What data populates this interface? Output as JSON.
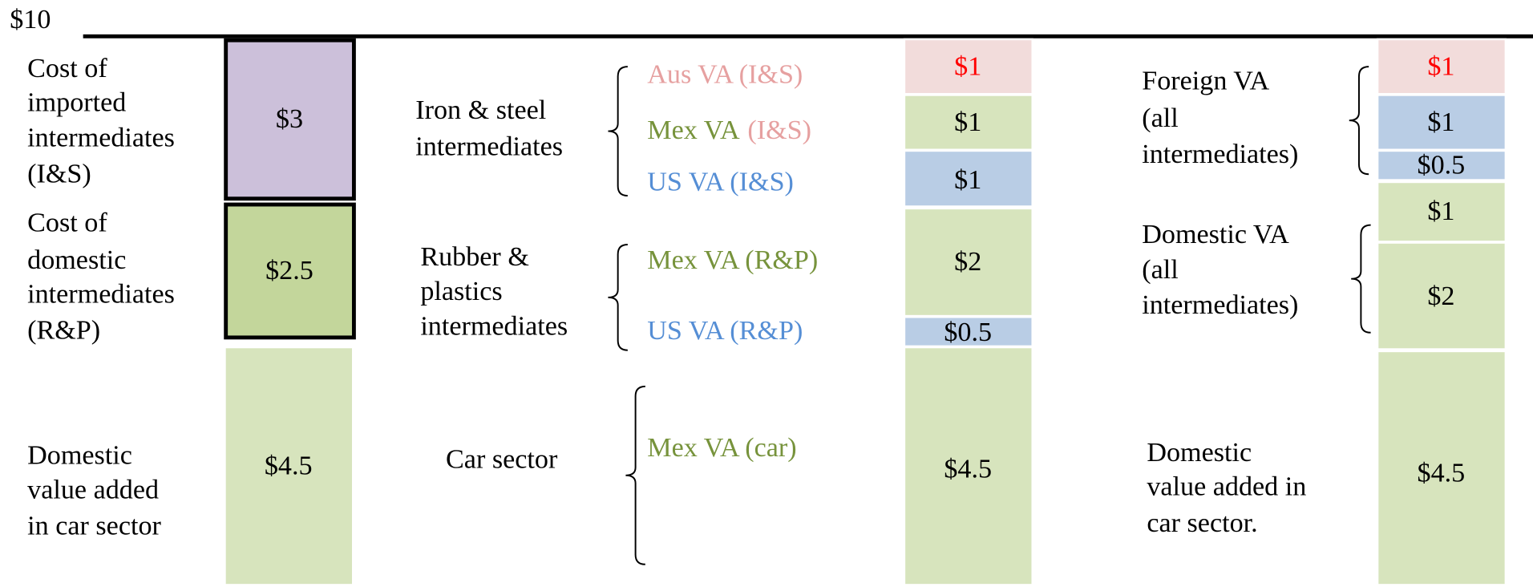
{
  "top_label": "$10",
  "left": {
    "labels": [
      [
        "Cost of",
        "imported",
        "intermediates",
        "(I&S)"
      ],
      [
        "Cost of",
        "domestic",
        "intermediates",
        "(R&P)"
      ],
      [
        "Domestic",
        "value added",
        "in car sector"
      ]
    ],
    "boxes": [
      "$3",
      "$2.5",
      "$4.5"
    ]
  },
  "middle": {
    "groups": [
      {
        "lines": [
          "Iron & steel",
          "intermediates"
        ],
        "items": [
          [
            "Aus VA (I&S)"
          ],
          [
            "Mex VA",
            "(I&S)"
          ],
          [
            "US VA (I&S)"
          ]
        ]
      },
      {
        "lines": [
          "Rubber &",
          "plastics",
          "intermediates"
        ],
        "items": [
          [
            "Mex VA (R&P)"
          ],
          [
            "US VA (R&P)"
          ]
        ]
      },
      {
        "lines": [
          "Car sector"
        ],
        "items": [
          [
            "Mex VA (car)"
          ]
        ]
      }
    ],
    "boxes": [
      "$1",
      "$1",
      "$1",
      "$2",
      "$0.5",
      "$4.5"
    ]
  },
  "right": {
    "labels": [
      [
        "Foreign VA",
        "(all",
        "intermediates)"
      ],
      [
        "Domestic VA",
        "(all",
        "intermediates)"
      ],
      [
        "Domestic",
        "value added in",
        "car sector."
      ]
    ],
    "boxes": [
      "$1",
      "$1",
      "$0.5",
      "$1",
      "$2",
      "$4.5"
    ]
  }
}
